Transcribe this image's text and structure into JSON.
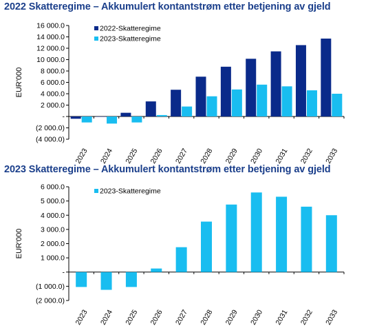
{
  "colors": {
    "dark": "#0a2a8a",
    "light": "#19bdf0",
    "title": "#1b3f8b"
  },
  "chart_data": [
    {
      "type": "bar",
      "title": "2022 Skatteregime – Akkumulert kontantstrøm etter betjening av gjeld",
      "ylabel": "EUR'000",
      "xlabel": "",
      "ylim": [
        -4000,
        16000
      ],
      "yticks": [
        -4000,
        -2000,
        0,
        2000,
        4000,
        6000,
        8000,
        10000,
        12000,
        14000,
        16000
      ],
      "ytick_labels": [
        "(4 000.0)",
        "(2 000.0)",
        "-",
        "2 000.0",
        "4 000.0",
        "6 000.0",
        "8 000.0",
        "10 000.0",
        "12 000.0",
        "14 000.0",
        "16 000.0"
      ],
      "categories": [
        "2023",
        "2024",
        "2025",
        "2026",
        "2027",
        "2028",
        "2029",
        "2030",
        "2031",
        "2032",
        "2033"
      ],
      "legend_position": "top-left",
      "series": [
        {
          "name": "2022-Skatteregime",
          "color": "#0a2a8a",
          "values": [
            -400,
            -50,
            650,
            2650,
            4700,
            7000,
            8750,
            10150,
            11450,
            12550,
            13700
          ]
        },
        {
          "name": "2023-Skatteregime",
          "color": "#19bdf0",
          "values": [
            -1050,
            -1250,
            -1050,
            250,
            1750,
            3550,
            4750,
            5600,
            5300,
            4600,
            4000
          ]
        }
      ]
    },
    {
      "type": "bar",
      "title": "2023 Skatteregime – Akkumulert kontantstrøm etter betjening av gjeld",
      "ylabel": "EUR'000",
      "xlabel": "",
      "ylim": [
        -2000,
        6000
      ],
      "yticks": [
        -2000,
        -1000,
        0,
        1000,
        2000,
        3000,
        4000,
        5000,
        6000
      ],
      "ytick_labels": [
        "(2 000.0)",
        "(1 000.0)",
        "-",
        "1 000.0",
        "2 000.0",
        "3 000.0",
        "4 000.0",
        "5 000.0",
        "6 000.0"
      ],
      "categories": [
        "2023",
        "2024",
        "2025",
        "2026",
        "2027",
        "2028",
        "2029",
        "2030",
        "2031",
        "2032",
        "2033"
      ],
      "legend_position": "top-left",
      "series": [
        {
          "name": "2023-Skatteregime",
          "color": "#19bdf0",
          "values": [
            -1050,
            -1250,
            -1050,
            250,
            1750,
            3550,
            4750,
            5600,
            5300,
            4600,
            4000
          ]
        }
      ]
    }
  ]
}
